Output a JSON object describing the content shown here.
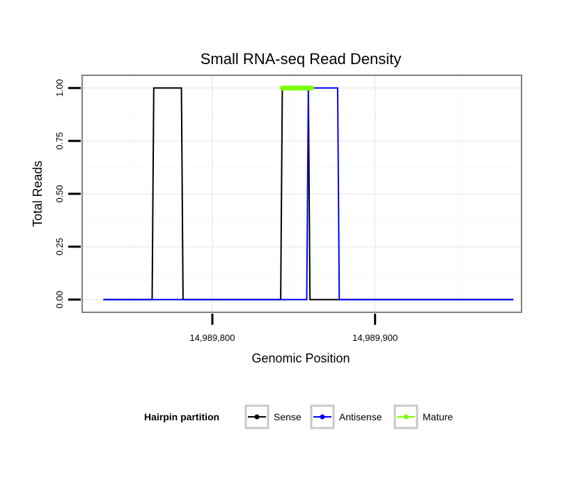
{
  "chart_data": {
    "type": "line",
    "title": "Small RNA-seq Read Density",
    "xlabel": "Genomic Position",
    "ylabel": "Total Reads",
    "xlim": [
      14989720,
      14989990
    ],
    "ylim": [
      -0.06,
      1.06
    ],
    "x_ticks": [
      14989800,
      14989900
    ],
    "x_tick_labels": [
      "14,989,800",
      "14,989,900"
    ],
    "y_ticks": [
      0,
      0.25,
      0.5,
      0.75,
      1.0
    ],
    "y_tick_labels": [
      "0.00",
      "0.25",
      "0.50",
      "0.75",
      "1.00"
    ],
    "grid": true,
    "legend": {
      "position": "bottom",
      "title": "Hairpin partition",
      "entries": [
        "Sense",
        "Antisense",
        "Mature"
      ]
    },
    "series": [
      {
        "name": "Sense",
        "color": "#000000",
        "x": [
          14989733,
          14989763,
          14989764,
          14989781,
          14989782,
          14989842,
          14989843,
          14989859,
          14989860,
          14989985
        ],
        "y": [
          0,
          0,
          1,
          1,
          0,
          0,
          1,
          1,
          0,
          0
        ]
      },
      {
        "name": "Antisense",
        "color": "#0000ff",
        "x": [
          14989733,
          14989858,
          14989859,
          14989877,
          14989878,
          14989985
        ],
        "y": [
          0,
          0,
          1,
          1,
          0,
          0
        ]
      },
      {
        "name": "Mature",
        "color": "#7fff00",
        "x": [
          14989843,
          14989861
        ],
        "y": [
          1,
          1
        ]
      }
    ]
  }
}
